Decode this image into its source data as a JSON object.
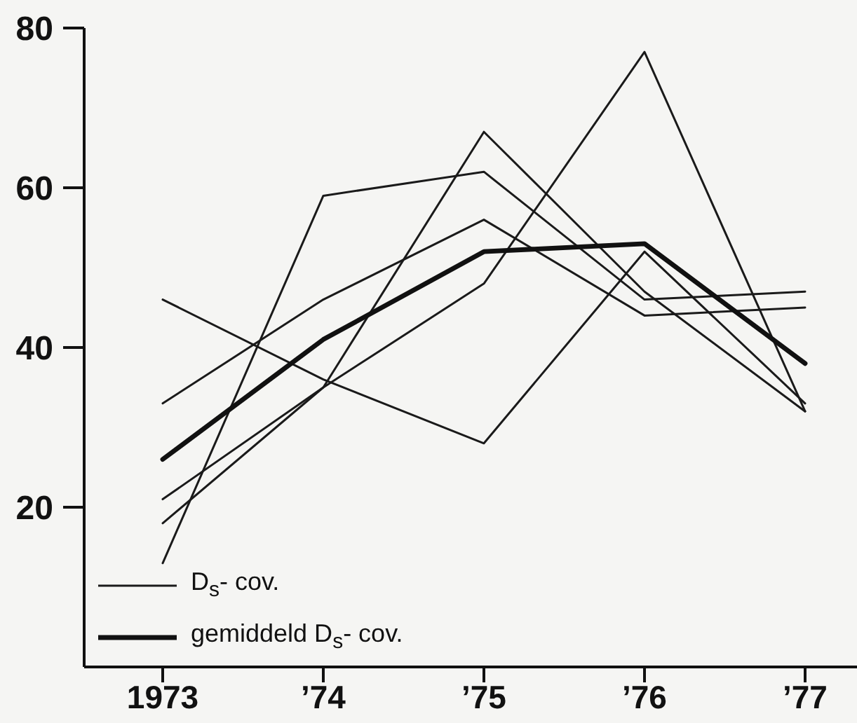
{
  "chart_data": {
    "type": "line",
    "categories": [
      "1973",
      "’74",
      "’75",
      "’76",
      "’77"
    ],
    "series": [
      {
        "name": "D$_{s}$- cov.",
        "color": "#1a1a1a",
        "values": [
          46,
          36,
          28,
          52,
          33
        ]
      },
      {
        "color": "#1a1a1a",
        "values": [
          13,
          59,
          62,
          46,
          47
        ]
      },
      {
        "color": "#1a1a1a",
        "values": [
          33,
          46,
          56,
          44,
          45
        ]
      },
      {
        "color": "#1a1a1a",
        "values": [
          18,
          35,
          67,
          47,
          32
        ]
      },
      {
        "color": "#1a1a1a",
        "values": [
          21,
          35,
          48,
          77,
          32
        ]
      },
      {
        "name": "gemiddeld D$_{s}$- cov.",
        "color": "#111111",
        "values": [
          26,
          41,
          52,
          53,
          38
        ]
      }
    ],
    "ylim": [
      0,
      80
    ],
    "yticks": [
      20,
      40,
      60,
      80
    ],
    "legend": "bottom left",
    "marker": "none",
    "line_style": "solid"
  }
}
